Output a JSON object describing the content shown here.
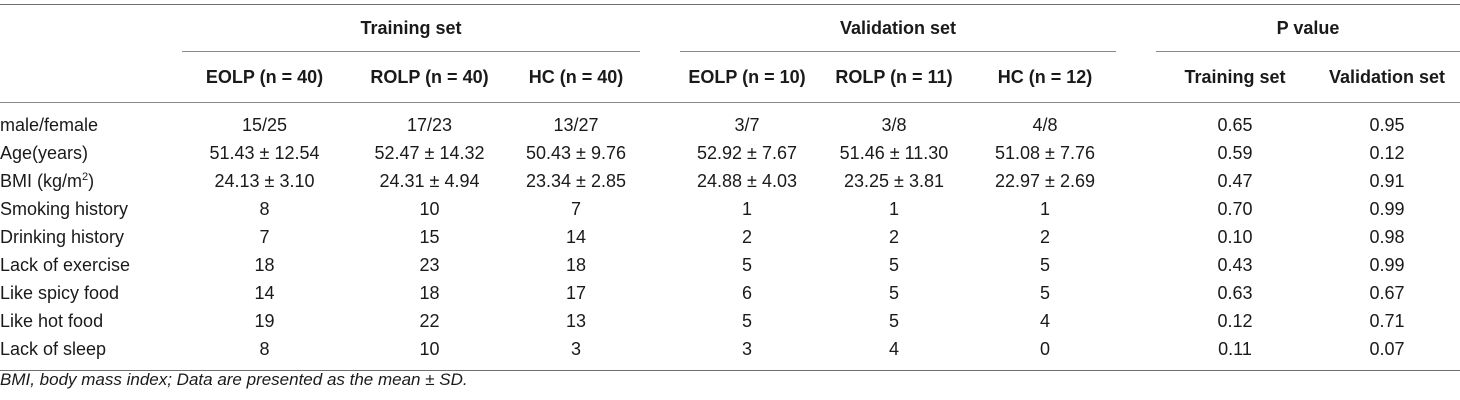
{
  "table": {
    "groups": [
      {
        "label": "Training set"
      },
      {
        "label": "Validation set"
      },
      {
        "label": "P value"
      }
    ],
    "columns": [
      "EOLP (n = 40)",
      "ROLP (n = 40)",
      "HC (n = 40)",
      "EOLP (n = 10)",
      "ROLP (n = 11)",
      "HC (n = 12)",
      "Training set",
      "Validation set"
    ],
    "rows": [
      {
        "label": "male/female",
        "values": [
          "15/25",
          "17/23",
          "13/27",
          "3/7",
          "3/8",
          "4/8",
          "0.65",
          "0.95"
        ]
      },
      {
        "label": "Age(years)",
        "values": [
          "51.43 ± 12.54",
          "52.47 ± 14.32",
          "50.43 ± 9.76",
          "52.92 ± 7.67",
          "51.46 ± 11.30",
          "51.08 ± 7.76",
          "0.59",
          "0.12"
        ]
      },
      {
        "label": "BMI (kg/m",
        "label_sup": "2",
        "label_tail": ")",
        "values": [
          "24.13 ± 3.10",
          "24.31 ± 4.94",
          "23.34 ± 2.85",
          "24.88 ± 4.03",
          "23.25 ± 3.81",
          "22.97 ± 2.69",
          "0.47",
          "0.91"
        ]
      },
      {
        "label": "Smoking history",
        "values": [
          "8",
          "10",
          "7",
          "1",
          "1",
          "1",
          "0.70",
          "0.99"
        ]
      },
      {
        "label": "Drinking history",
        "values": [
          "7",
          "15",
          "14",
          "2",
          "2",
          "2",
          "0.10",
          "0.98"
        ]
      },
      {
        "label": "Lack of exercise",
        "values": [
          "18",
          "23",
          "18",
          "5",
          "5",
          "5",
          "0.43",
          "0.99"
        ]
      },
      {
        "label": "Like spicy food",
        "values": [
          "14",
          "18",
          "17",
          "6",
          "5",
          "5",
          "0.63",
          "0.67"
        ]
      },
      {
        "label": "Like hot food",
        "values": [
          "19",
          "22",
          "13",
          "5",
          "5",
          "4",
          "0.12",
          "0.71"
        ]
      },
      {
        "label": "Lack of sleep",
        "values": [
          "8",
          "10",
          "3",
          "3",
          "4",
          "0",
          "0.11",
          "0.07"
        ]
      }
    ]
  },
  "footnote": "BMI, body mass index; Data are presented as the mean ± SD."
}
